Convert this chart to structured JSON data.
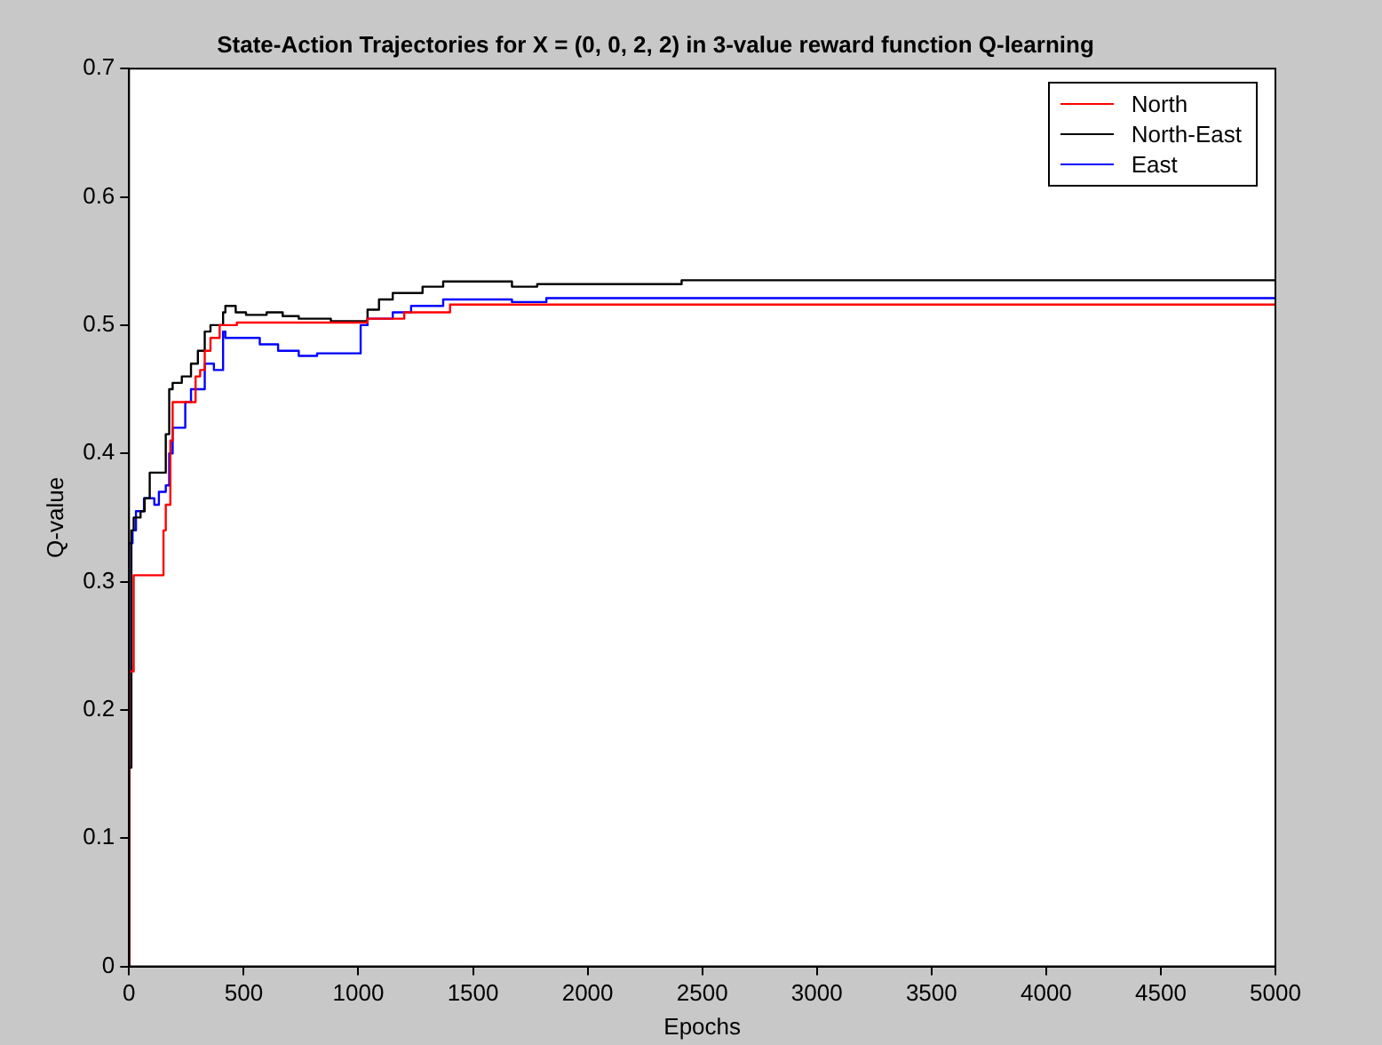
{
  "chart_data": {
    "type": "step",
    "title": "State-Action Trajectories for X = (0, 0, 2, 2) in 3-value reward function Q-learning",
    "xlabel": "Epochs",
    "ylabel": "Q-value",
    "xlim": [
      0,
      5000
    ],
    "ylim": [
      0,
      0.7
    ],
    "xticks": [
      0,
      500,
      1000,
      1500,
      2000,
      2500,
      3000,
      3500,
      4000,
      4500,
      5000
    ],
    "yticks": [
      0,
      0.1,
      0.2,
      0.3,
      0.4,
      0.5,
      0.6,
      0.7
    ],
    "grid": false,
    "legend": "top right",
    "marker": "none",
    "line_style": "solid",
    "series": [
      {
        "name": "North",
        "color": "#ff0000",
        "x": [
          0,
          20,
          25,
          150,
          160,
          180,
          190,
          290,
          310,
          330,
          355,
          395,
          470,
          765,
          1040,
          1200,
          1400,
          1550,
          5000
        ],
        "values": [
          0,
          0.23,
          0.305,
          0.305,
          0.34,
          0.36,
          0.41,
          0.44,
          0.46,
          0.465,
          0.48,
          0.49,
          0.5,
          0.502,
          0.502,
          0.505,
          0.51,
          0.516,
          0.516
        ]
      },
      {
        "name": "North-East",
        "color": "#000000",
        "x": [
          0,
          10,
          20,
          50,
          68,
          90,
          160,
          175,
          190,
          230,
          270,
          300,
          330,
          355,
          410,
          420,
          465,
          510,
          600,
          670,
          740,
          880,
          900,
          1040,
          1090,
          1150,
          1280,
          1370,
          1450,
          1670,
          1780,
          2410,
          2900,
          5000
        ],
        "values": [
          0,
          0.155,
          0.34,
          0.35,
          0.355,
          0.365,
          0.385,
          0.415,
          0.45,
          0.455,
          0.46,
          0.47,
          0.48,
          0.495,
          0.5,
          0.51,
          0.515,
          0.51,
          0.508,
          0.51,
          0.507,
          0.505,
          0.503,
          0.503,
          0.512,
          0.52,
          0.525,
          0.53,
          0.534,
          0.534,
          0.53,
          0.532,
          0.535,
          0.535
        ]
      },
      {
        "name": "East",
        "color": "#0000ff",
        "x": [
          0,
          15,
          30,
          65,
          110,
          130,
          160,
          175,
          190,
          245,
          270,
          330,
          370,
          410,
          420,
          490,
          570,
          650,
          740,
          820,
          1010,
          1040,
          1150,
          1230,
          1370,
          1450,
          1670,
          1820,
          2740,
          5000
        ],
        "values": [
          0,
          0.33,
          0.34,
          0.355,
          0.365,
          0.36,
          0.37,
          0.375,
          0.4,
          0.42,
          0.44,
          0.45,
          0.47,
          0.465,
          0.495,
          0.49,
          0.49,
          0.485,
          0.48,
          0.476,
          0.478,
          0.5,
          0.505,
          0.51,
          0.515,
          0.52,
          0.52,
          0.518,
          0.521,
          0.521
        ]
      }
    ]
  }
}
